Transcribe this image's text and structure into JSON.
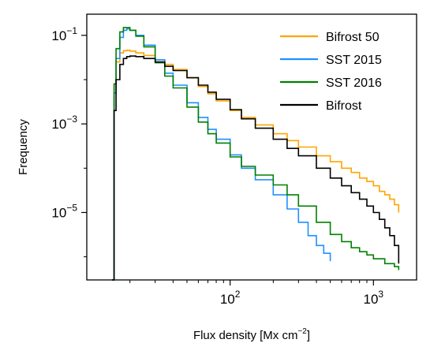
{
  "chart_data": {
    "type": "line",
    "title": "",
    "xlabel": "Flux density [Mx cm",
    "xlabel_sup": "−2",
    "xlabel_end": "]",
    "ylabel": "Frequency",
    "xscale": "log",
    "yscale": "log",
    "xlim": [
      10,
      2000
    ],
    "ylim": [
      3e-07,
      0.3
    ],
    "x_ticks": [
      {
        "value": 100,
        "base": "10",
        "exp": "2"
      },
      {
        "value": 1000,
        "base": "10",
        "exp": "3"
      }
    ],
    "y_ticks": [
      {
        "value": 0.1,
        "base": "10",
        "exp": "−1"
      },
      {
        "value": 0.001,
        "base": "10",
        "exp": "−3"
      },
      {
        "value": 1e-05,
        "base": "10",
        "exp": "−5"
      }
    ],
    "legend_position": "top-right",
    "grid": false,
    "series": [
      {
        "name": "Bifrost 50",
        "color": "#ffa500",
        "x": [
          15,
          15.5,
          16,
          17,
          18,
          19,
          20,
          22,
          25,
          30,
          35,
          40,
          50,
          60,
          70,
          80,
          100,
          120,
          150,
          200,
          250,
          300,
          400,
          500,
          600,
          700,
          800,
          900,
          1000,
          1100,
          1200,
          1300,
          1400,
          1500
        ],
        "y": [
          3e-07,
          0.008,
          0.025,
          0.04,
          0.045,
          0.046,
          0.044,
          0.04,
          0.035,
          0.028,
          0.022,
          0.017,
          0.011,
          0.007,
          0.0048,
          0.0033,
          0.002,
          0.0014,
          0.00095,
          0.0006,
          0.00042,
          0.0003,
          0.00019,
          0.00014,
          0.0001,
          8e-05,
          6e-05,
          5e-05,
          4e-05,
          3e-05,
          2.5e-05,
          2e-05,
          1.5e-05,
          1e-05
        ]
      },
      {
        "name": "SST 2015",
        "color": "#1e90ff",
        "x": [
          15,
          15.5,
          16,
          17,
          18,
          19,
          20,
          22,
          25,
          30,
          35,
          40,
          50,
          60,
          70,
          80,
          100,
          120,
          150,
          200,
          250,
          300,
          350,
          400,
          450,
          500
        ],
        "y": [
          3e-07,
          0.005,
          0.03,
          0.09,
          0.13,
          0.14,
          0.13,
          0.1,
          0.06,
          0.028,
          0.014,
          0.0075,
          0.003,
          0.0014,
          0.00075,
          0.00045,
          0.0002,
          0.0001,
          5.5e-05,
          2.5e-05,
          1.2e-05,
          6e-06,
          3e-06,
          1.8e-06,
          1.2e-06,
          8e-07
        ]
      },
      {
        "name": "SST 2016",
        "color": "#008000",
        "x": [
          15,
          15.5,
          16,
          17,
          18,
          19,
          20,
          22,
          25,
          30,
          35,
          40,
          50,
          60,
          70,
          80,
          100,
          120,
          150,
          200,
          250,
          300,
          400,
          500,
          600,
          700,
          800,
          900,
          1000,
          1200,
          1400,
          1500
        ],
        "y": [
          3e-07,
          0.008,
          0.05,
          0.12,
          0.15,
          0.15,
          0.13,
          0.095,
          0.055,
          0.024,
          0.012,
          0.0065,
          0.0024,
          0.0011,
          0.0006,
          0.00037,
          0.00018,
          0.00011,
          7e-05,
          4.2e-05,
          2.5e-05,
          1.4e-05,
          6e-06,
          3.2e-06,
          2.2e-06,
          1.6e-06,
          1.3e-06,
          1.1e-06,
          9e-07,
          7e-07,
          6e-07,
          5e-07
        ]
      },
      {
        "name": "Bifrost",
        "color": "#000000",
        "x": [
          15,
          15.5,
          16,
          17,
          18,
          19,
          20,
          22,
          25,
          30,
          35,
          40,
          50,
          60,
          70,
          80,
          100,
          120,
          150,
          200,
          250,
          300,
          400,
          500,
          600,
          700,
          800,
          900,
          1000,
          1100,
          1200,
          1300,
          1400,
          1500
        ],
        "y": [
          3e-07,
          0.002,
          0.01,
          0.022,
          0.03,
          0.033,
          0.034,
          0.033,
          0.03,
          0.025,
          0.02,
          0.016,
          0.011,
          0.0075,
          0.0052,
          0.0036,
          0.0021,
          0.0013,
          0.0008,
          0.00045,
          0.00028,
          0.00019,
          0.0001,
          6e-05,
          4e-05,
          2.8e-05,
          2e-05,
          1.4e-05,
          1e-05,
          7e-06,
          4.5e-06,
          3e-06,
          1.8e-06,
          7e-07
        ]
      }
    ]
  }
}
